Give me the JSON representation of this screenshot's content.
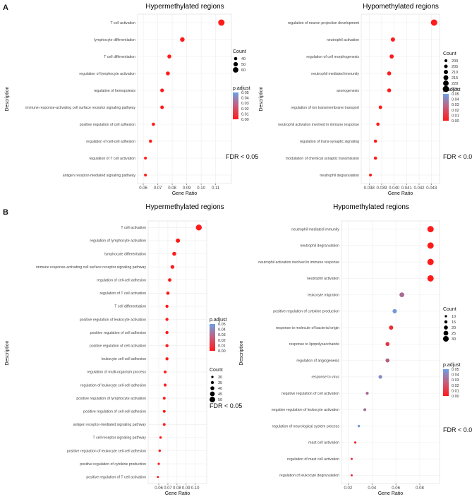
{
  "chart_data": [
    {
      "type": "scatter",
      "title": "Hypermethylated regions",
      "panel": "A",
      "xlabel": "Gene Ratio",
      "ylabel": "Description",
      "xlim": [
        0.059,
        0.118
      ],
      "xticks": [
        0.06,
        0.07,
        0.08,
        0.09,
        0.1,
        0.11
      ],
      "xtick_labels": [
        "0.06",
        "0.07",
        "0.08",
        "0.09",
        "0.10",
        "0.11"
      ],
      "annotation": "FDR < 0.05",
      "legend": {
        "size_title": "Count",
        "size_values": [
          40,
          50,
          60
        ],
        "color_title": "p.adjust",
        "color_ticks": [
          "0.05",
          "0.04",
          "0.03",
          "0.02",
          "0.01",
          "0.00"
        ],
        "p_max": 0.05
      },
      "points": [
        {
          "term": "T cell activation",
          "x": 0.114,
          "count": 68,
          "p": 0.0
        },
        {
          "term": "lymphocyte differentiation",
          "x": 0.087,
          "count": 52,
          "p": 0.0
        },
        {
          "term": "T cell differentiation",
          "x": 0.078,
          "count": 46,
          "p": 0.0
        },
        {
          "term": "regulation of lymphocyte activation",
          "x": 0.077,
          "count": 46,
          "p": 0.0
        },
        {
          "term": "regulation of hemopoiesis",
          "x": 0.073,
          "count": 44,
          "p": 0.0
        },
        {
          "term": "immune response-activating cell surface receptor signaling pathway",
          "x": 0.073,
          "count": 43,
          "p": 0.0
        },
        {
          "term": "positive regulation of cell adhesion",
          "x": 0.067,
          "count": 40,
          "p": 0.0
        },
        {
          "term": "regulation of cell-cell adhesion",
          "x": 0.065,
          "count": 39,
          "p": 0.0
        },
        {
          "term": "regulation of T cell activation",
          "x": 0.0615,
          "count": 36,
          "p": 0.0
        },
        {
          "term": "antigen receptor-mediated signaling pathway",
          "x": 0.0615,
          "count": 36,
          "p": 0.0
        }
      ]
    },
    {
      "type": "scatter",
      "title": "Hypomethylated regions",
      "panel": "A",
      "xlabel": "Gene Ratio",
      "ylabel": "Description",
      "xlim": [
        0.0377,
        0.0433
      ],
      "xticks": [
        0.038,
        0.039,
        0.04,
        0.041,
        0.042,
        0.043
      ],
      "xtick_labels": [
        "0.038",
        "0.039",
        "0.040",
        "0.041",
        "0.042",
        "0.043"
      ],
      "annotation": "FDR < 0.05",
      "legend": {
        "size_title": "Count",
        "size_values": [
          200,
          205,
          210,
          215,
          220,
          225
        ],
        "color_title": "p.adjust",
        "color_ticks": [
          "0.05",
          "0.04",
          "0.03",
          "0.02",
          "0.01",
          "0.00"
        ],
        "p_max": 0.05
      },
      "points": [
        {
          "term": "regulation of neuron projection development",
          "x": 0.0432,
          "count": 226,
          "p": 0.0
        },
        {
          "term": "neutrophil activation",
          "x": 0.0399,
          "count": 210,
          "p": 0.0
        },
        {
          "term": "regulation of cell morphogenesis",
          "x": 0.0398,
          "count": 209,
          "p": 0.0
        },
        {
          "term": "neutrophil mediated immunity",
          "x": 0.0396,
          "count": 208,
          "p": 0.0
        },
        {
          "term": "axonogenesis",
          "x": 0.0396,
          "count": 207,
          "p": 0.0
        },
        {
          "term": "regulation of ion transmembrane transport",
          "x": 0.0389,
          "count": 204,
          "p": 0.0
        },
        {
          "term": "neutrophil activation involved in immune response",
          "x": 0.0387,
          "count": 203,
          "p": 0.0
        },
        {
          "term": "regulation of trans-synaptic signaling",
          "x": 0.0385,
          "count": 202,
          "p": 0.0
        },
        {
          "term": "modulation of chemical synaptic transmission",
          "x": 0.0385,
          "count": 202,
          "p": 0.0
        },
        {
          "term": "neutrophil degranulation",
          "x": 0.0381,
          "count": 199,
          "p": 0.0
        }
      ]
    },
    {
      "type": "scatter",
      "title": "Hypermethylated regions",
      "panel": "B",
      "xlabel": "Gene Ratio",
      "ylabel": "Description",
      "xlim": [
        0.053,
        0.108
      ],
      "xticks": [
        0.06,
        0.07,
        0.08,
        0.09,
        0.1
      ],
      "xtick_labels": [
        "0.06",
        "0.07",
        "0.08",
        "0.09",
        "0.10"
      ],
      "annotation": "FDR < 0.05",
      "legend": {
        "size_title": "Count",
        "size_values": [
          30,
          35,
          40,
          45,
          50
        ],
        "color_title": "p.adjust",
        "color_ticks": [
          "0.05",
          "0.04",
          "0.03",
          "0.02",
          "0.01",
          "0.00"
        ],
        "p_max": 0.05
      },
      "points": [
        {
          "term": "T cell activation",
          "x": 0.104,
          "count": 52,
          "p": 0.0
        },
        {
          "term": "regulation of lymphocyte activation",
          "x": 0.081,
          "count": 42,
          "p": 0.0
        },
        {
          "term": "lymphocyte differentiation",
          "x": 0.077,
          "count": 40,
          "p": 0.0
        },
        {
          "term": "immune response-activating cell surface receptor signaling pathway",
          "x": 0.075,
          "count": 39,
          "p": 0.0
        },
        {
          "term": "regulation of cell-cell adhesion",
          "x": 0.072,
          "count": 37,
          "p": 0.0
        },
        {
          "term": "regulation of T cell activation",
          "x": 0.07,
          "count": 36,
          "p": 0.0
        },
        {
          "term": "T cell differentiation",
          "x": 0.069,
          "count": 35,
          "p": 0.0
        },
        {
          "term": "positive regulation of leukocyte activation",
          "x": 0.069,
          "count": 35,
          "p": 0.0
        },
        {
          "term": "positive regulation of cell adhesion",
          "x": 0.069,
          "count": 35,
          "p": 0.0
        },
        {
          "term": "positive regulation of cell activation",
          "x": 0.069,
          "count": 35,
          "p": 0.0
        },
        {
          "term": "leukocyte cell-cell adhesion",
          "x": 0.069,
          "count": 35,
          "p": 0.0
        },
        {
          "term": "regulation of multi-organism process",
          "x": 0.067,
          "count": 34,
          "p": 0.0
        },
        {
          "term": "regulation of leukocyte cell-cell adhesion",
          "x": 0.067,
          "count": 34,
          "p": 0.0
        },
        {
          "term": "positive regulation of lymphocyte activation",
          "x": 0.066,
          "count": 33,
          "p": 0.0
        },
        {
          "term": "positive regulation of cell-cell adhesion",
          "x": 0.066,
          "count": 33,
          "p": 0.0
        },
        {
          "term": "antigen receptor-mediated signaling pathway",
          "x": 0.066,
          "count": 33,
          "p": 0.0
        },
        {
          "term": "T cell receptor signaling pathway",
          "x": 0.062,
          "count": 31,
          "p": 0.0
        },
        {
          "term": "positive regulation of leukocyte cell-cell adhesion",
          "x": 0.061,
          "count": 31,
          "p": 0.0
        },
        {
          "term": "positive regulation of cytokine production",
          "x": 0.06,
          "count": 30,
          "p": 0.0
        },
        {
          "term": "positive regulation of T cell activation",
          "x": 0.059,
          "count": 29,
          "p": 0.0
        }
      ]
    },
    {
      "type": "scatter",
      "title": "Hypomethylated regions",
      "panel": "B",
      "xlabel": "Gene Ratio",
      "ylabel": "Description",
      "xlim": [
        0.018,
        0.093
      ],
      "xticks": [
        0.02,
        0.04,
        0.06,
        0.08
      ],
      "xtick_labels": [
        "0.02",
        "0.04",
        "0.06",
        "0.08"
      ],
      "annotation": "FDR < 0.05",
      "legend": {
        "size_title": "Count",
        "size_values": [
          10,
          15,
          20,
          25,
          30
        ],
        "color_title": "p.adjust",
        "color_ticks": [
          "0.05",
          "0.04",
          "0.03",
          "0.02",
          "0.01",
          "0.00"
        ],
        "p_max": 0.05
      },
      "points": [
        {
          "term": "neutrophil mediated immunity",
          "x": 0.089,
          "count": 34,
          "p": 0.0
        },
        {
          "term": "neutrophil degranulation",
          "x": 0.089,
          "count": 34,
          "p": 0.0
        },
        {
          "term": "neutrophil activation involved in immune response",
          "x": 0.089,
          "count": 34,
          "p": 0.0
        },
        {
          "term": "neutrophil activation",
          "x": 0.089,
          "count": 34,
          "p": 0.0
        },
        {
          "term": "leukocyte migration",
          "x": 0.065,
          "count": 25,
          "p": 0.03
        },
        {
          "term": "positive regulation of cytokine production",
          "x": 0.059,
          "count": 22,
          "p": 0.047
        },
        {
          "term": "response to molecule of bacterial origin",
          "x": 0.056,
          "count": 21,
          "p": 0.006
        },
        {
          "term": "response to lipopolysaccharide",
          "x": 0.053,
          "count": 20,
          "p": 0.01
        },
        {
          "term": "regulation of angiogenesis",
          "x": 0.053,
          "count": 20,
          "p": 0.025
        },
        {
          "term": "response to virus",
          "x": 0.047,
          "count": 18,
          "p": 0.042
        },
        {
          "term": "negative regulation of cell activation",
          "x": 0.036,
          "count": 14,
          "p": 0.03
        },
        {
          "term": "negative regulation of leukocyte activation",
          "x": 0.034,
          "count": 13,
          "p": 0.03
        },
        {
          "term": "regulation of neurological system process",
          "x": 0.029,
          "count": 11,
          "p": 0.048
        },
        {
          "term": "mast cell activation",
          "x": 0.026,
          "count": 10,
          "p": 0.005
        },
        {
          "term": "regulation of mast cell activation",
          "x": 0.023,
          "count": 9,
          "p": 0.005
        },
        {
          "term": "regulation of leukocyte degranulation",
          "x": 0.023,
          "count": 9,
          "p": 0.005
        }
      ]
    }
  ],
  "panel_labels": [
    "A",
    "B"
  ]
}
